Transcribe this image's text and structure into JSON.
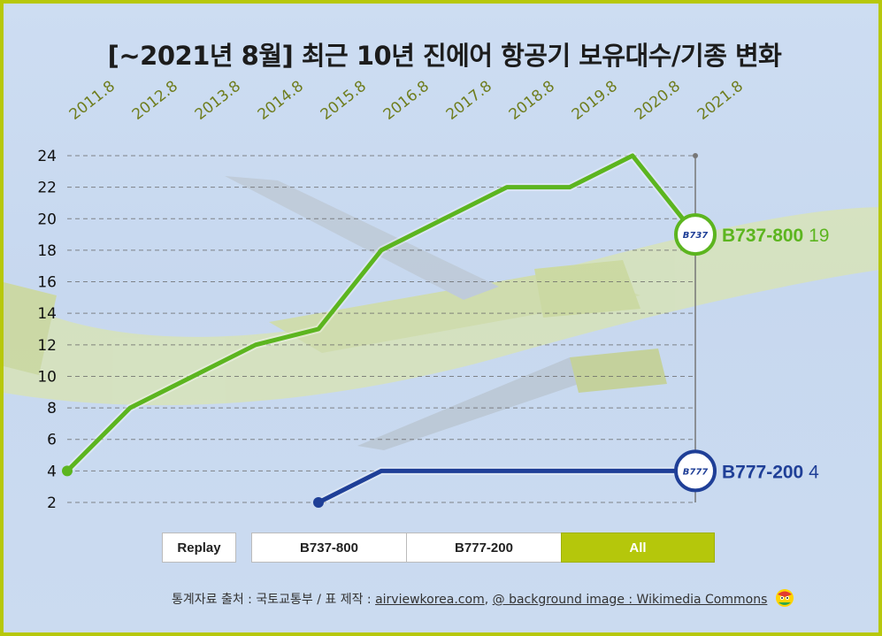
{
  "title": "[~2021년 8월] 최근 10년 진에어 항공기 보유대수/기종 변화",
  "chart_data": {
    "type": "line",
    "categories": [
      "2011.8",
      "2012.8",
      "2013.8",
      "2014.8",
      "2015.8",
      "2016.8",
      "2017.8",
      "2018.8",
      "2019.8",
      "2020.8",
      "2021.8"
    ],
    "ylim": [
      2,
      24
    ],
    "yticks": [
      2,
      4,
      6,
      8,
      10,
      12,
      14,
      16,
      18,
      20,
      22,
      24
    ],
    "series": [
      {
        "name": "B737-800",
        "badge": "B737",
        "color": "#5cb51f",
        "values": [
          4,
          8,
          10,
          12,
          13,
          18,
          20,
          22,
          22,
          24,
          19
        ],
        "end_label": "B737-800",
        "end_value": "19"
      },
      {
        "name": "B777-200",
        "badge": "B777",
        "color": "#1f3f97",
        "values": [
          null,
          null,
          null,
          null,
          2,
          4,
          4,
          4,
          4,
          4,
          4
        ],
        "end_label": "B777-200",
        "end_value": "4"
      }
    ]
  },
  "buttons": {
    "replay": "Replay",
    "b737": "B737-800",
    "b777": "B777-200",
    "all": "All"
  },
  "footer": {
    "source": "통계자료 출처 : 국토교통부 / 표 제작 : ",
    "maker_link": "airviewkorea.com",
    "separator": ", ",
    "bg_link": "@ background image : Wikimedia Commons"
  },
  "colors": {
    "border": "#b7c80a",
    "year_label": "#6f7d1e",
    "grid": "#666666"
  }
}
